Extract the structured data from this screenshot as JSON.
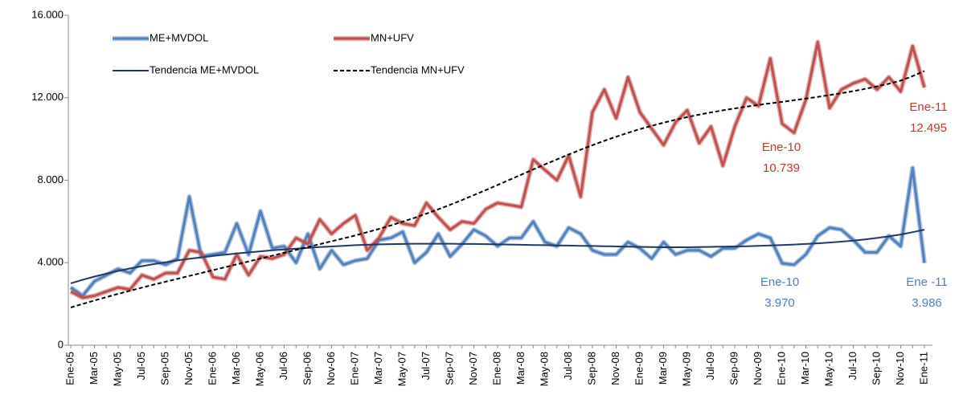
{
  "chart_data": {
    "type": "line",
    "categories": [
      "Ene-05",
      null,
      "Mar-05",
      null,
      "May-05",
      null,
      "Jul-05",
      null,
      "Sep-05",
      null,
      "Nov-05",
      null,
      "Ene-06",
      null,
      "Mar-06",
      null,
      "May-06",
      null,
      "Jul-06",
      null,
      "Sep-06",
      null,
      "Nov-06",
      null,
      "Ene-07",
      null,
      "Mar-07",
      null,
      "May-07",
      null,
      "Jul-07",
      null,
      "Sep-07",
      null,
      "Nov-07",
      null,
      "Ene-08",
      null,
      "Mar-08",
      null,
      "May-08",
      null,
      "Jul-08",
      null,
      "Sep-08",
      null,
      "Nov-08",
      null,
      "Ene-09",
      null,
      "Mar-09",
      null,
      "May-09",
      null,
      "Jul-09",
      null,
      "Sep-09",
      null,
      "Nov-09",
      null,
      "Ene-10",
      null,
      "Mar-10",
      null,
      "May-10",
      null,
      "Jul-10",
      null,
      "Sep-10",
      null,
      "Nov-10",
      null,
      "Ene-11"
    ],
    "ylim": [
      0,
      16000
    ],
    "yticks": [
      0,
      {
        "value": 4000,
        "label": "4.000"
      },
      {
        "value": 8000,
        "label": "8.000"
      },
      {
        "value": 12000,
        "label": "12.000"
      },
      {
        "value": 16000,
        "label": "16.000"
      }
    ],
    "grid": false,
    "series": [
      {
        "name": "ME+MVDOL",
        "color": "#4f81bd",
        "line_style": "solid",
        "values": [
          2800,
          2400,
          3100,
          3400,
          3700,
          3500,
          4100,
          4100,
          3900,
          4200,
          7200,
          4300,
          4400,
          4500,
          5900,
          4400,
          6500,
          4700,
          4800,
          4000,
          5400,
          3700,
          4600,
          3900,
          4100,
          4200,
          5100,
          5200,
          5500,
          4000,
          4500,
          5400,
          4300,
          4900,
          5600,
          5300,
          4800,
          5200,
          5200,
          6000,
          5000,
          4800,
          5700,
          5400,
          4600,
          4400,
          4400,
          5000,
          4700,
          4200,
          5000,
          4400,
          4600,
          4600,
          4300,
          4700,
          4700,
          5100,
          5400,
          5200,
          3970,
          3900,
          4400,
          5300,
          5700,
          5600,
          5100,
          4500,
          4500,
          5300,
          4800,
          8600,
          3986
        ]
      },
      {
        "name": "MN+UFV",
        "color": "#c0504d",
        "line_style": "solid",
        "values": [
          2600,
          2300,
          2400,
          2600,
          2800,
          2700,
          3400,
          3200,
          3500,
          3500,
          4600,
          4500,
          3300,
          3200,
          4400,
          3400,
          4300,
          4200,
          4400,
          5200,
          4900,
          6100,
          5400,
          5900,
          6300,
          4600,
          5200,
          6200,
          5900,
          5800,
          6900,
          6200,
          5600,
          6000,
          5900,
          6600,
          6900,
          6800,
          6700,
          9000,
          8500,
          8000,
          9200,
          7200,
          11300,
          12400,
          11000,
          13000,
          11300,
          10500,
          9700,
          10800,
          11400,
          9800,
          10600,
          8700,
          10600,
          12000,
          11600,
          13900,
          10739,
          10300,
          11900,
          14700,
          11500,
          12400,
          12700,
          12900,
          12400,
          13000,
          12300,
          14500,
          12495
        ]
      },
      {
        "name": "Tendencia ME+MVDOL",
        "color": "#1f3864",
        "line_style": "solid",
        "values": [
          3000,
          3170,
          3330,
          3470,
          3600,
          3720,
          3830,
          3930,
          4020,
          4110,
          4190,
          4260,
          4330,
          4390,
          4450,
          4500,
          4550,
          4600,
          4640,
          4680,
          4720,
          4760,
          4790,
          4820,
          4850,
          4870,
          4890,
          4900,
          4910,
          4920,
          4920,
          4920,
          4920,
          4910,
          4910,
          4900,
          4890,
          4880,
          4870,
          4860,
          4850,
          4840,
          4830,
          4820,
          4810,
          4800,
          4790,
          4780,
          4770,
          4760,
          4750,
          4750,
          4750,
          4760,
          4770,
          4780,
          4790,
          4800,
          4820,
          4840,
          4860,
          4880,
          4910,
          4940,
          4980,
          5020,
          5070,
          5130,
          5200,
          5280,
          5370,
          5480,
          5600
        ]
      },
      {
        "name": "Tendencia MN+UFV",
        "color": "#000000",
        "line_style": "dashed",
        "values": [
          1830,
          2000,
          2170,
          2330,
          2490,
          2640,
          2790,
          2940,
          3080,
          3220,
          3360,
          3500,
          3640,
          3780,
          3920,
          4060,
          4200,
          4340,
          4480,
          4620,
          4760,
          4900,
          5040,
          5180,
          5320,
          5480,
          5640,
          5810,
          5990,
          6180,
          6380,
          6590,
          6810,
          7040,
          7280,
          7520,
          7770,
          8020,
          8270,
          8520,
          8770,
          9010,
          9250,
          9480,
          9700,
          9910,
          10110,
          10300,
          10480,
          10640,
          10790,
          10930,
          11060,
          11180,
          11290,
          11390,
          11480,
          11570,
          11650,
          11730,
          11800,
          11880,
          11960,
          12040,
          12130,
          12220,
          12320,
          12430,
          12550,
          12680,
          12830,
          13050,
          13300
        ]
      }
    ],
    "annotations": [
      {
        "lines": [
          "Ene-10",
          "10.739"
        ],
        "color": "#c0392b"
      },
      {
        "lines": [
          "Ene-11",
          "12.495"
        ],
        "color": "#c0392b"
      },
      {
        "lines": [
          "Ene-10",
          "3.970"
        ],
        "color": "#4f81bd"
      },
      {
        "lines": [
          "Ene -11",
          "3.986"
        ],
        "color": "#4f81bd"
      }
    ]
  }
}
